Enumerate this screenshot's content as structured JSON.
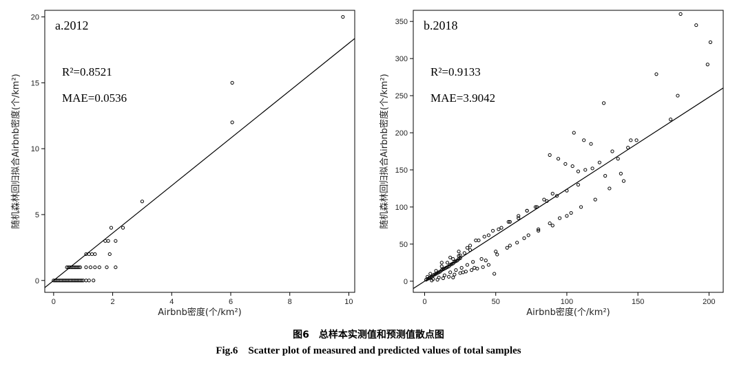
{
  "caption": {
    "cn": "图6　总样本实测值和预测值散点图",
    "en": "Fig.6　Scatter plot of measured and predicted values of total samples"
  },
  "chart_data": [
    {
      "type": "scatter",
      "panel_label": "a.2012",
      "r2_label": "R²=0.8521",
      "mae_label": "MAE=0.0536",
      "xlabel": "Airbnb密度(个/km²)",
      "ylabel": "随机森林回归拟合Airbnb密度(个/km²)",
      "xlim": [
        -0.3,
        10.2
      ],
      "ylim": [
        -0.9,
        20.5
      ],
      "xticks": [
        0,
        2,
        4,
        6,
        8,
        10
      ],
      "yticks": [
        0,
        5,
        10,
        15,
        20
      ],
      "grid": false,
      "legend": "none",
      "fit_line": {
        "slope": 1.8,
        "intercept": 0
      },
      "series": [
        {
          "x": [
            0.0,
            0.05,
            0.1,
            0.15,
            0.2,
            0.25,
            0.3,
            0.35,
            0.4,
            0.45,
            0.5,
            0.55,
            0.6,
            0.65,
            0.7,
            0.75,
            0.8,
            0.85,
            0.9,
            0.95,
            1.0,
            1.1,
            1.2,
            1.35,
            0.45,
            0.5,
            0.55,
            0.6,
            0.65,
            0.7,
            0.75,
            0.8,
            0.85,
            0.9,
            1.1,
            1.25,
            1.4,
            1.55,
            1.8,
            2.1,
            1.1,
            1.2,
            1.3,
            1.4,
            1.9,
            1.75,
            1.85,
            2.1,
            1.95,
            2.35,
            3.0,
            6.05,
            6.05,
            9.8
          ],
          "y": [
            0,
            0,
            0,
            0,
            0,
            0,
            0,
            0,
            0,
            0,
            0,
            0,
            0,
            0,
            0,
            0,
            0,
            0,
            0,
            0,
            0,
            0,
            0,
            0,
            1,
            1,
            1,
            1,
            1,
            1,
            1,
            1,
            1,
            1,
            1,
            1,
            1,
            1,
            1,
            1,
            2,
            2,
            2,
            2,
            2,
            3,
            3,
            3,
            4,
            4,
            6,
            12,
            15,
            20
          ]
        }
      ]
    },
    {
      "type": "scatter",
      "panel_label": "b.2018",
      "r2_label": "R²=0.9133",
      "mae_label": "MAE=3.9042",
      "xlabel": "Airbnb密度(个/km²)",
      "ylabel": "随机森林回归拟合Airbnb密度(个/km²)",
      "xlim": [
        -8,
        210
      ],
      "ylim": [
        -15,
        365
      ],
      "xticks": [
        0,
        50,
        100,
        150,
        200
      ],
      "yticks": [
        0,
        50,
        100,
        150,
        200,
        250,
        300,
        350
      ],
      "grid": false,
      "legend": "none",
      "fit_line": {
        "slope": 1.24,
        "intercept": 0
      },
      "series": [
        {
          "x": [
            1,
            2,
            3,
            4,
            5,
            6,
            7,
            8,
            9,
            10,
            11,
            12,
            13,
            14,
            15,
            16,
            17,
            18,
            19,
            20,
            21,
            22,
            23,
            24,
            25,
            2,
            4,
            6,
            8,
            10,
            12,
            14,
            16,
            18,
            20,
            22,
            24,
            26,
            28,
            30,
            32,
            34,
            5,
            9,
            13,
            17,
            21,
            25,
            29,
            33,
            37,
            41,
            45,
            49,
            12,
            18,
            24,
            30,
            36,
            42,
            48,
            54,
            60,
            66,
            72,
            78,
            84,
            90,
            20,
            27,
            35,
            43,
            51,
            58,
            65,
            73,
            80,
            88,
            95,
            103,
            25,
            32,
            38,
            45,
            52,
            59,
            66,
            72,
            79,
            86,
            93,
            100,
            108,
            40,
            50,
            60,
            70,
            80,
            90,
            100,
            110,
            120,
            130,
            140,
            88,
            94,
            99,
            104,
            108,
            113,
            118,
            123,
            127,
            132,
            138,
            143,
            149,
            105,
            112,
            117,
            126,
            136,
            145,
            173,
            178,
            163,
            180,
            191,
            199,
            201
          ],
          "y": [
            2,
            3,
            4,
            5,
            6,
            8,
            9,
            10,
            11,
            12,
            13,
            15,
            16,
            17,
            18,
            19,
            20,
            22,
            23,
            24,
            26,
            27,
            28,
            30,
            31,
            6,
            10,
            3,
            14,
            5,
            20,
            8,
            25,
            12,
            30,
            15,
            34,
            18,
            38,
            22,
            42,
            26,
            1,
            2,
            4,
            6,
            9,
            11,
            13,
            15,
            17,
            19,
            22,
            10,
            25,
            32,
            40,
            45,
            55,
            60,
            68,
            72,
            80,
            85,
            95,
            100,
            110,
            118,
            5,
            12,
            18,
            28,
            36,
            45,
            52,
            62,
            70,
            78,
            85,
            92,
            35,
            48,
            55,
            62,
            70,
            80,
            88,
            95,
            100,
            108,
            115,
            122,
            130,
            30,
            40,
            48,
            58,
            68,
            75,
            88,
            100,
            110,
            125,
            135,
            170,
            165,
            158,
            155,
            148,
            150,
            152,
            160,
            142,
            175,
            145,
            180,
            190,
            200,
            190,
            185,
            240,
            165,
            190,
            218,
            250,
            279,
            360,
            345,
            292,
            322
          ]
        }
      ]
    }
  ]
}
